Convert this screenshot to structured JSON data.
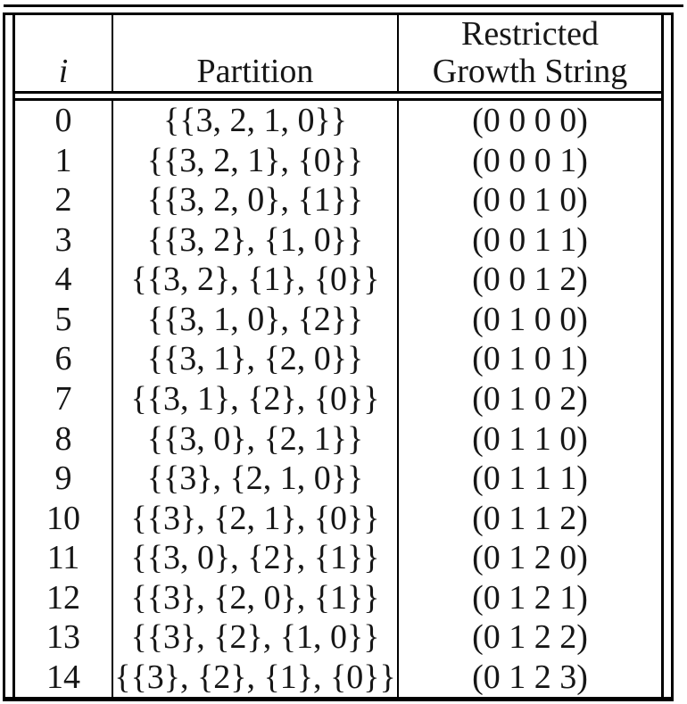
{
  "colors": {
    "background": "#ffffff",
    "text": "#161616",
    "rule": "#000000"
  },
  "table": {
    "headers": {
      "i": "i",
      "partition": "Partition",
      "rgs_line1": "Restricted",
      "rgs_line2": "Growth String"
    },
    "rows": [
      {
        "i": "0",
        "partition": "{{3, 2, 1, 0}}",
        "rgs": "(0 0 0 0)"
      },
      {
        "i": "1",
        "partition": "{{3, 2, 1}, {0}}",
        "rgs": "(0 0 0 1)"
      },
      {
        "i": "2",
        "partition": "{{3, 2, 0}, {1}}",
        "rgs": "(0 0 1 0)"
      },
      {
        "i": "3",
        "partition": "{{3, 2}, {1, 0}}",
        "rgs": "(0 0 1 1)"
      },
      {
        "i": "4",
        "partition": "{{3, 2}, {1}, {0}}",
        "rgs": "(0 0 1 2)"
      },
      {
        "i": "5",
        "partition": "{{3, 1, 0}, {2}}",
        "rgs": "(0 1 0 0)"
      },
      {
        "i": "6",
        "partition": "{{3, 1}, {2, 0}}",
        "rgs": "(0 1 0 1)"
      },
      {
        "i": "7",
        "partition": "{{3, 1}, {2}, {0}}",
        "rgs": "(0 1 0 2)"
      },
      {
        "i": "8",
        "partition": "{{3, 0}, {2, 1}}",
        "rgs": "(0 1 1 0)"
      },
      {
        "i": "9",
        "partition": "{{3}, {2, 1, 0}}",
        "rgs": "(0 1 1 1)"
      },
      {
        "i": "10",
        "partition": "{{3}, {2, 1}, {0}}",
        "rgs": "(0 1 1 2)"
      },
      {
        "i": "11",
        "partition": "{{3, 0}, {2}, {1}}",
        "rgs": "(0 1 2 0)"
      },
      {
        "i": "12",
        "partition": "{{3}, {2, 0}, {1}}",
        "rgs": "(0 1 2 1)"
      },
      {
        "i": "13",
        "partition": "{{3}, {2}, {1, 0}}",
        "rgs": "(0 1 2 2)"
      },
      {
        "i": "14",
        "partition": "{{3}, {2}, {1}, {0}}",
        "rgs": "(0 1 2 3)"
      }
    ]
  }
}
